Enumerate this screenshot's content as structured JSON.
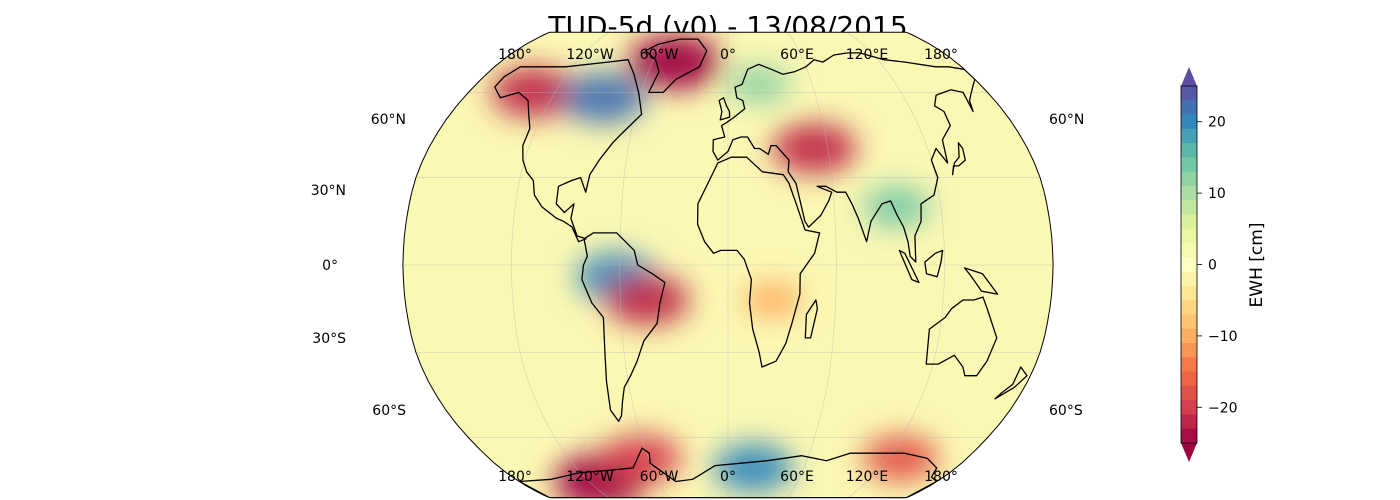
{
  "title": "TUD-5d (v0) - 13/08/2015",
  "map": {
    "projection": "Robinson",
    "top_lon_labels": [
      "180°",
      "120°W",
      "60°W",
      "0°",
      "60°E",
      "120°E",
      "180°"
    ],
    "bottom_lon_labels": [
      "180°",
      "120°W",
      "60°W",
      "0°",
      "60°E",
      "120°E",
      "180°"
    ],
    "left_lat_labels": [
      "60°N",
      "30°N",
      "0°",
      "30°S",
      "60°S"
    ],
    "right_lat_labels": [
      "60°N",
      "60°S"
    ],
    "field_units": "cm",
    "anomalies": [
      {
        "region": "Alaska/Yukon",
        "lon": -135,
        "lat": 60,
        "value": -22
      },
      {
        "region": "Greenland",
        "lon": -42,
        "lat": 72,
        "value": -26
      },
      {
        "region": "Hudson Bay / Canada",
        "lon": -85,
        "lat": 58,
        "value": 22
      },
      {
        "region": "Scandinavia",
        "lon": 22,
        "lat": 63,
        "value": 12
      },
      {
        "region": "Caspian region",
        "lon": 52,
        "lat": 40,
        "value": -22
      },
      {
        "region": "Amazon",
        "lon": -62,
        "lat": -4,
        "value": 20
      },
      {
        "region": "Brazil highlands",
        "lon": -45,
        "lat": -12,
        "value": -22
      },
      {
        "region": "South-central Africa",
        "lon": 25,
        "lat": -12,
        "value": -10
      },
      {
        "region": "Bay of Bengal / Myanmar",
        "lon": 95,
        "lat": 20,
        "value": 14
      },
      {
        "region": "West Antarctica",
        "lon": -110,
        "lat": -78,
        "value": -26
      },
      {
        "region": "Antarctic Peninsula",
        "lon": -65,
        "lat": -68,
        "value": -20
      },
      {
        "region": "Dronning Maud Land",
        "lon": 20,
        "lat": -72,
        "value": 20
      },
      {
        "region": "Wilkes Land",
        "lon": 130,
        "lat": -68,
        "value": -18
      }
    ]
  },
  "colorbar": {
    "label": "EWH [cm]",
    "min": -25,
    "max": 25,
    "ticks": [
      20,
      10,
      0,
      -10,
      -20
    ],
    "tick_labels": [
      "20",
      "10",
      "0",
      "−10",
      "−20"
    ],
    "colormap": "Spectral",
    "extend": "both",
    "colors": [
      "#9e0142",
      "#d53e4f",
      "#f46d43",
      "#fdae61",
      "#fee08b",
      "#ffffbf",
      "#e6f598",
      "#abdda4",
      "#66c2a5",
      "#3288bd",
      "#5e4fa2"
    ]
  }
}
